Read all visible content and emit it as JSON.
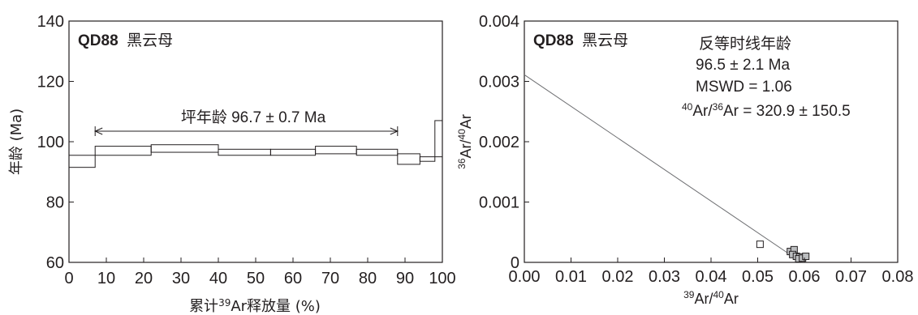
{
  "chart_data": [
    {
      "type": "age-spectrum",
      "sample": "QD88",
      "mineral": "黑云母",
      "xlabel_parts": [
        "累计",
        "39",
        "Ar释放量 (%)"
      ],
      "ylabel": "年龄 (Ma)",
      "xlim": [
        0,
        100
      ],
      "ylim": [
        60,
        140
      ],
      "xticks": [
        "0",
        "10",
        "20",
        "30",
        "40",
        "50",
        "60",
        "70",
        "80",
        "90",
        "100"
      ],
      "yticks": [
        "60",
        "80",
        "100",
        "120",
        "140"
      ],
      "plateau_label": "坪年龄 96.7 ± 0.7 Ma",
      "plateau_range": [
        7,
        88
      ],
      "steps": [
        {
          "x0": 0,
          "x1": 7,
          "ylo": 91.5,
          "yhi": 95.5
        },
        {
          "x0": 7,
          "x1": 22,
          "ylo": 95.5,
          "yhi": 98.5
        },
        {
          "x0": 22,
          "x1": 40,
          "ylo": 96.5,
          "yhi": 99.0
        },
        {
          "x0": 40,
          "x1": 54,
          "ylo": 95.5,
          "yhi": 97.5
        },
        {
          "x0": 54,
          "x1": 66,
          "ylo": 95.5,
          "yhi": 97.5
        },
        {
          "x0": 66,
          "x1": 77,
          "ylo": 96.0,
          "yhi": 98.5
        },
        {
          "x0": 77,
          "x1": 88,
          "ylo": 95.5,
          "yhi": 97.5
        },
        {
          "x0": 88,
          "x1": 94,
          "ylo": 92.5,
          "yhi": 96.0
        },
        {
          "x0": 94,
          "x1": 98,
          "ylo": 93.5,
          "yhi": 95.0
        },
        {
          "x0": 98,
          "x1": 100,
          "ylo": 95.0,
          "yhi": 107.0
        }
      ]
    },
    {
      "type": "scatter",
      "sample": "QD88",
      "mineral": "黑云母",
      "xlabel_parts": [
        "39",
        "Ar/",
        "40",
        "Ar"
      ],
      "ylabel_parts": [
        "36",
        "Ar/",
        "40",
        "Ar"
      ],
      "xlim": [
        0,
        0.08
      ],
      "ylim": [
        0,
        0.004
      ],
      "xticks": [
        "0.00",
        "0.01",
        "0.02",
        "0.03",
        "0.04",
        "0.05",
        "0.06",
        "0.07",
        "0.08"
      ],
      "yticks": [
        "0",
        "0.001",
        "0.002",
        "0.003",
        "0.004"
      ],
      "annotation": {
        "line1": "反等时线年龄",
        "line2": "96.5 ± 2.1 Ma",
        "line3": "MSWD = 1.06",
        "line4_parts": [
          "40",
          "Ar/",
          "36",
          "Ar = 320.9 ± 150.5"
        ]
      },
      "fit_line": {
        "x": [
          0.0,
          0.0594
        ],
        "y": [
          0.00311,
          0.0
        ]
      },
      "points": [
        {
          "x": 0.0505,
          "y": 0.0003
        },
        {
          "x": 0.057,
          "y": 0.00018
        },
        {
          "x": 0.0578,
          "y": 0.00021
        },
        {
          "x": 0.0575,
          "y": 0.00013
        },
        {
          "x": 0.0583,
          "y": 0.0001
        },
        {
          "x": 0.059,
          "y": 9e-05
        },
        {
          "x": 0.0588,
          "y": 6e-05
        },
        {
          "x": 0.0596,
          "y": 7e-05
        },
        {
          "x": 0.0603,
          "y": 0.0001
        }
      ]
    }
  ]
}
